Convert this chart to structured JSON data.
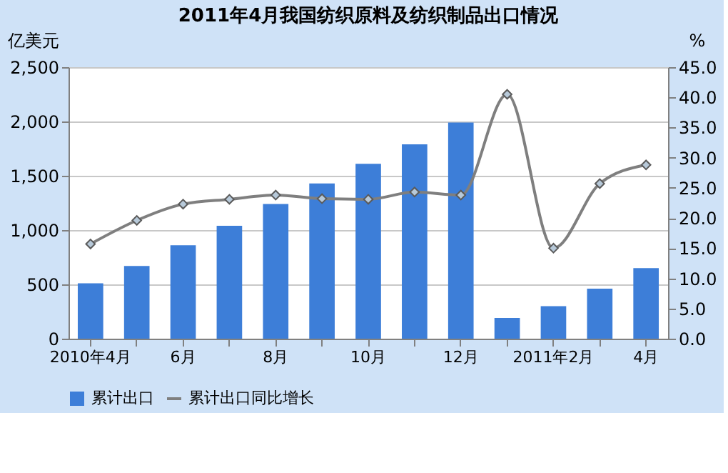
{
  "chart_data": {
    "type": "bar",
    "title": "2011年4月我国纺织原料及纺织制品出口情况",
    "categories": [
      "2010年4月",
      null,
      "6月",
      null,
      "8月",
      null,
      "10月",
      null,
      "12月",
      null,
      "2011年2月",
      null,
      "4月"
    ],
    "series": [
      {
        "name": "累计出口",
        "color": "#3d7ed8",
        "values": [
          510,
          670,
          860,
          1040,
          1240,
          1430,
          1610,
          1790,
          1990,
          190,
          300,
          460,
          650
        ]
      },
      {
        "name": "累计出口同比增长",
        "type": "line",
        "axis": "y2",
        "color": "#7f7f7f",
        "marker": "diamond",
        "values": [
          15.7,
          19.6,
          22.3,
          23.1,
          23.8,
          23.2,
          23.1,
          24.3,
          23.8,
          40.5,
          15.0,
          25.7,
          28.8
        ]
      }
    ],
    "ylabel": "亿美元",
    "y2label": "%",
    "ylim": [
      0,
      2500
    ],
    "yticks": [
      {
        "value": 0,
        "label": "0"
      },
      {
        "value": 500,
        "label": "500"
      },
      {
        "value": 1000,
        "label": "1,000"
      },
      {
        "value": 1500,
        "label": "1,500"
      },
      {
        "value": 2000,
        "label": "2,000"
      },
      {
        "value": 2500,
        "label": "2,500"
      }
    ],
    "y2lim": [
      0,
      45
    ],
    "y2ticks": [
      {
        "value": 0,
        "label": "0.0"
      },
      {
        "value": 5,
        "label": "5.0"
      },
      {
        "value": 10,
        "label": "10.0"
      },
      {
        "value": 15,
        "label": "15.0"
      },
      {
        "value": 20,
        "label": "20.0"
      },
      {
        "value": 25,
        "label": "25.0"
      },
      {
        "value": 30,
        "label": "30.0"
      },
      {
        "value": 35,
        "label": "35.0"
      },
      {
        "value": 40,
        "label": "40.0"
      },
      {
        "value": 45,
        "label": "45.0"
      }
    ],
    "grid": "y",
    "legend": "bottom",
    "line_style": "solid"
  }
}
